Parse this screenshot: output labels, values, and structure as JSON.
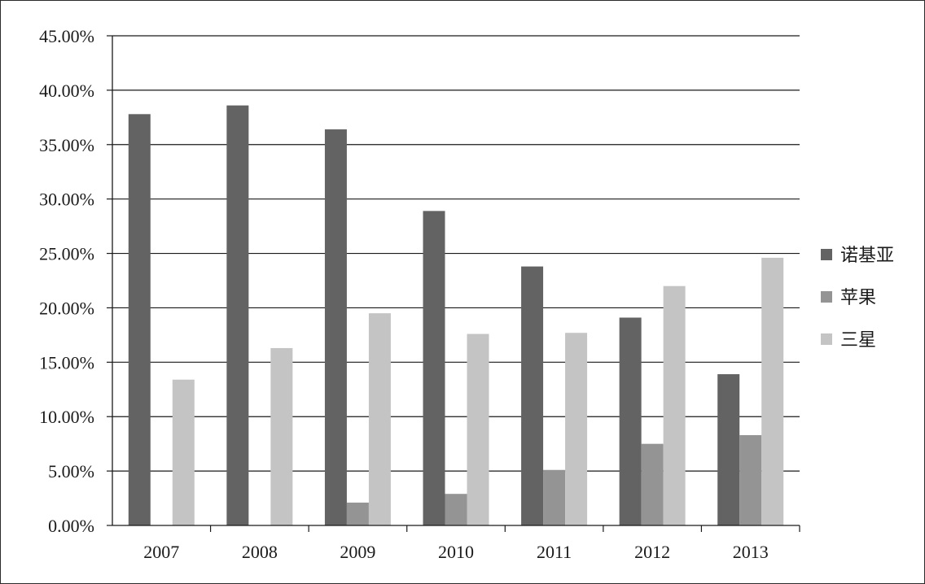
{
  "chart_data": {
    "type": "bar",
    "title": "",
    "xlabel": "",
    "ylabel": "",
    "ylim": [
      0,
      45
    ],
    "y_unit": "%",
    "y_ticks": [
      "0.00%",
      "5.00%",
      "10.00%",
      "15.00%",
      "20.00%",
      "25.00%",
      "30.00%",
      "35.00%",
      "40.00%",
      "45.00%"
    ],
    "categories": [
      "2007",
      "2008",
      "2009",
      "2010",
      "2011",
      "2012",
      "2013"
    ],
    "series": [
      {
        "name": "诺基亚",
        "color": "#636363",
        "values": [
          37.8,
          38.6,
          36.4,
          28.9,
          23.8,
          19.1,
          13.9
        ]
      },
      {
        "name": "苹果",
        "color": "#949494",
        "values": [
          0,
          0,
          2.1,
          2.9,
          5.1,
          7.5,
          8.3
        ]
      },
      {
        "name": "三星",
        "color": "#c4c4c4",
        "values": [
          13.4,
          16.3,
          19.5,
          17.6,
          17.7,
          22.0,
          24.6
        ]
      }
    ],
    "grid": true,
    "legend_position": "right"
  }
}
